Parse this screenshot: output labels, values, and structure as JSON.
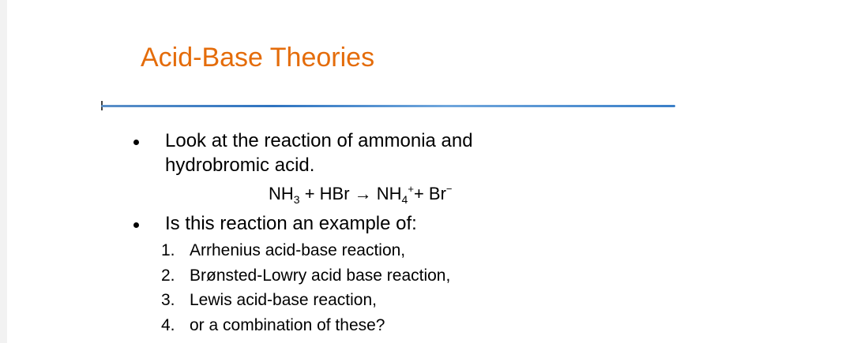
{
  "slide": {
    "title": "Acid-Base Theories",
    "bullets": [
      {
        "lines": [
          "Look at the reaction of ammonia and",
          "hydrobromic acid."
        ]
      },
      {
        "lines": [
          "Is this reaction an example of:"
        ]
      }
    ],
    "equation": [
      {
        "text": "NH"
      },
      {
        "sub": "3"
      },
      {
        "text": " + HBr → NH"
      },
      {
        "sub": "4"
      },
      {
        "sup": "+"
      },
      {
        "text": "+ Br"
      },
      {
        "sup": "−"
      }
    ],
    "options": [
      {
        "number": "1.",
        "text": "Arrhenius acid-base reaction,"
      },
      {
        "number": "2.",
        "text": "Brønsted-Lowry acid base reaction,"
      },
      {
        "number": "3.",
        "text": "Lewis acid-base reaction,"
      },
      {
        "number": "4.",
        "text": "or a combination of these?"
      }
    ]
  }
}
